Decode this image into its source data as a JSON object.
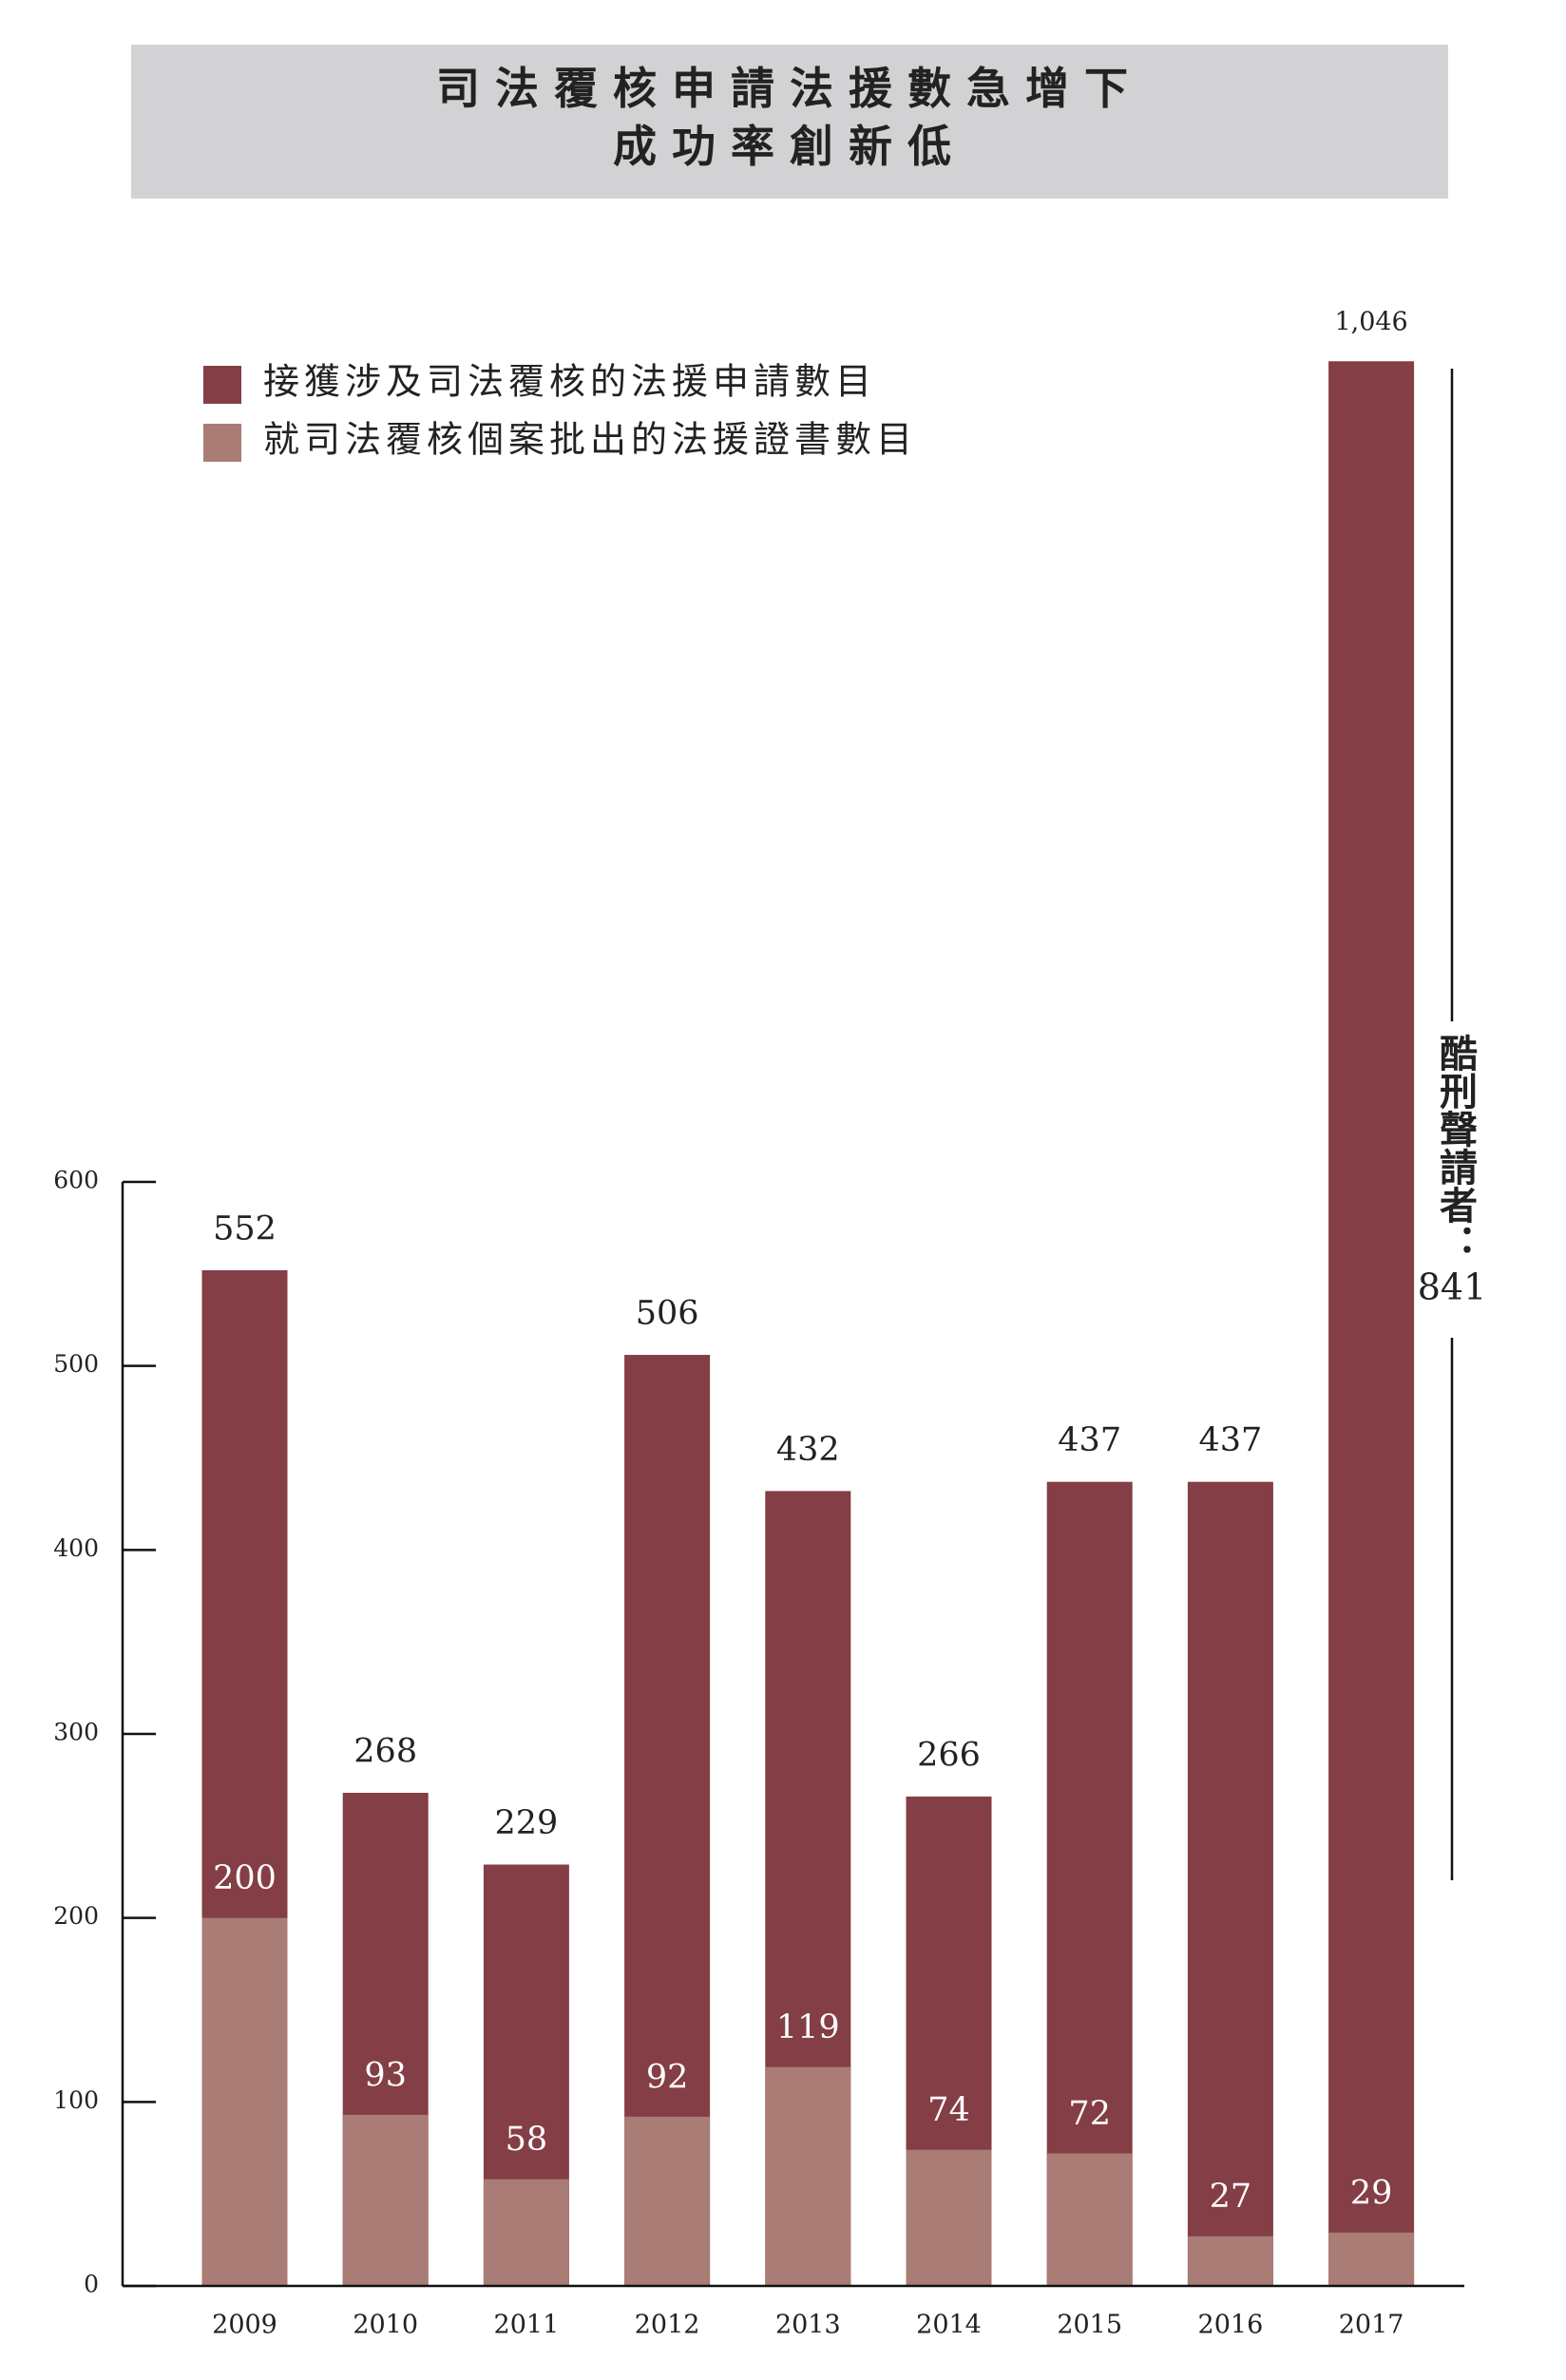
{
  "chart_data": {
    "type": "bar",
    "title": "司法覆核申請法援數急增下",
    "subtitle": "成功率創新低",
    "categories": [
      "2009",
      "2010",
      "2011",
      "2012",
      "2013",
      "2014",
      "2015",
      "2016",
      "2017"
    ],
    "series": [
      {
        "name": "接獲涉及司法覆核的法援申請數目",
        "color": "#843e45",
        "values": [
          552,
          268,
          229,
          506,
          432,
          266,
          437,
          437,
          1046
        ],
        "value_labels": [
          "552",
          "268",
          "229",
          "506",
          "432",
          "266",
          "437",
          "437",
          "1,046"
        ]
      },
      {
        "name": "就司法覆核個案批出的法援證書數目",
        "color": "#a97c75",
        "values": [
          200,
          93,
          58,
          92,
          119,
          74,
          72,
          27,
          29
        ]
      }
    ],
    "ylim": [
      0,
      600
    ],
    "yticks": [
      0,
      100,
      200,
      300,
      400,
      500,
      600
    ],
    "annotation": {
      "label": "酷刑聲請者：",
      "value": 841
    }
  }
}
